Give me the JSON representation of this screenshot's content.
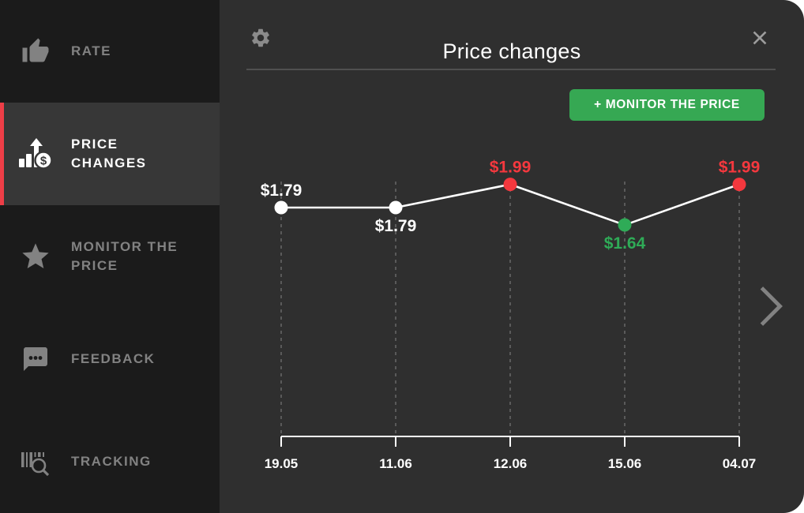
{
  "window": {
    "panel_background": "#2f2f2f",
    "sidebar_background": "#1b1b1b",
    "accent_color": "#ee3e47"
  },
  "sidebar": {
    "items": [
      {
        "label": "RATE",
        "icon": "thumbs-up-icon",
        "active": false
      },
      {
        "label": "PRICE CHANGES",
        "icon": "price-changes-icon",
        "active": true
      },
      {
        "label": "MONITOR THE PRICE",
        "icon": "star-icon",
        "active": false
      },
      {
        "label": "FEEDBACK",
        "icon": "feedback-icon",
        "active": false
      },
      {
        "label": "TRACKING",
        "icon": "tracking-icon",
        "active": false
      }
    ]
  },
  "header": {
    "title": "Price changes",
    "settings_icon": "gear-icon",
    "close_icon": "close-icon"
  },
  "actions": {
    "monitor_button_label": "+ MONITOR THE PRICE",
    "monitor_button_color": "#36a853",
    "next_icon": "chevron-right-icon"
  },
  "chart_data": {
    "type": "line",
    "title": "Price changes",
    "x": [
      "19.05",
      "11.06",
      "12.06",
      "15.06",
      "04.07"
    ],
    "values": [
      1.79,
      1.79,
      1.99,
      1.64,
      1.99
    ],
    "point_labels": [
      "$1.79",
      "$1.79",
      "$1.99",
      "$1.64",
      "$1.99"
    ],
    "point_colors": [
      "#ffffff",
      "#ffffff",
      "#f4383e",
      "#2fab57",
      "#f4383e"
    ],
    "label_placements": [
      "above",
      "below",
      "above",
      "below",
      "above"
    ],
    "currency": "$",
    "line_color": "#ffffff",
    "axis_color": "#ffffff",
    "tick_label_color": "#ffffff",
    "grid": "vertical-dashed",
    "grid_color": "#5a5a5a",
    "ylim": [
      1.5,
      2.1
    ],
    "legend": "none"
  }
}
